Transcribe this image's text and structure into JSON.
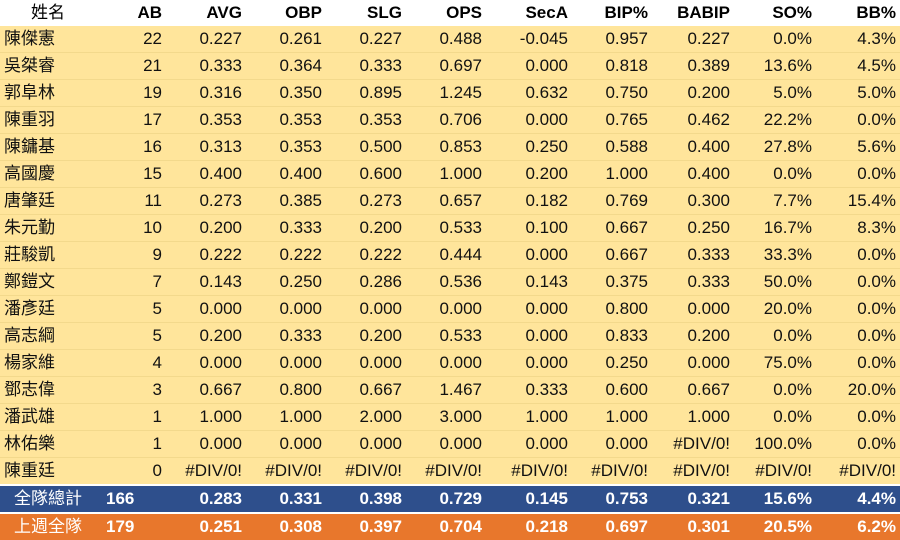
{
  "columns": [
    "姓名",
    "AB",
    "AVG",
    "OBP",
    "SLG",
    "OPS",
    "SecA",
    "BIP%",
    "BABIP",
    "SO%",
    "BB%"
  ],
  "players": [
    [
      "陳傑憲",
      "22",
      "0.227",
      "0.261",
      "0.227",
      "0.488",
      "-0.045",
      "0.957",
      "0.227",
      "0.0%",
      "4.3%"
    ],
    [
      "吳桀睿",
      "21",
      "0.333",
      "0.364",
      "0.333",
      "0.697",
      "0.000",
      "0.818",
      "0.389",
      "13.6%",
      "4.5%"
    ],
    [
      "郭阜林",
      "19",
      "0.316",
      "0.350",
      "0.895",
      "1.245",
      "0.632",
      "0.750",
      "0.200",
      "5.0%",
      "5.0%"
    ],
    [
      "陳重羽",
      "17",
      "0.353",
      "0.353",
      "0.353",
      "0.706",
      "0.000",
      "0.765",
      "0.462",
      "22.2%",
      "0.0%"
    ],
    [
      "陳鏞基",
      "16",
      "0.313",
      "0.353",
      "0.500",
      "0.853",
      "0.250",
      "0.588",
      "0.400",
      "27.8%",
      "5.6%"
    ],
    [
      "高國慶",
      "15",
      "0.400",
      "0.400",
      "0.600",
      "1.000",
      "0.200",
      "1.000",
      "0.400",
      "0.0%",
      "0.0%"
    ],
    [
      "唐肇廷",
      "11",
      "0.273",
      "0.385",
      "0.273",
      "0.657",
      "0.182",
      "0.769",
      "0.300",
      "7.7%",
      "15.4%"
    ],
    [
      "朱元勤",
      "10",
      "0.200",
      "0.333",
      "0.200",
      "0.533",
      "0.100",
      "0.667",
      "0.250",
      "16.7%",
      "8.3%"
    ],
    [
      "莊駿凱",
      "9",
      "0.222",
      "0.222",
      "0.222",
      "0.444",
      "0.000",
      "0.667",
      "0.333",
      "33.3%",
      "0.0%"
    ],
    [
      "鄭鎧文",
      "7",
      "0.143",
      "0.250",
      "0.286",
      "0.536",
      "0.143",
      "0.375",
      "0.333",
      "50.0%",
      "0.0%"
    ],
    [
      "潘彥廷",
      "5",
      "0.000",
      "0.000",
      "0.000",
      "0.000",
      "0.000",
      "0.800",
      "0.000",
      "20.0%",
      "0.0%"
    ],
    [
      "高志綱",
      "5",
      "0.200",
      "0.333",
      "0.200",
      "0.533",
      "0.000",
      "0.833",
      "0.200",
      "0.0%",
      "0.0%"
    ],
    [
      "楊家維",
      "4",
      "0.000",
      "0.000",
      "0.000",
      "0.000",
      "0.000",
      "0.250",
      "0.000",
      "75.0%",
      "0.0%"
    ],
    [
      "鄧志偉",
      "3",
      "0.667",
      "0.800",
      "0.667",
      "1.467",
      "0.333",
      "0.600",
      "0.667",
      "0.0%",
      "20.0%"
    ],
    [
      "潘武雄",
      "1",
      "1.000",
      "1.000",
      "2.000",
      "3.000",
      "1.000",
      "1.000",
      "1.000",
      "0.0%",
      "0.0%"
    ],
    [
      "林佑樂",
      "1",
      "0.000",
      "0.000",
      "0.000",
      "0.000",
      "0.000",
      "0.000",
      "#DIV/0!",
      "100.0%",
      "0.0%"
    ],
    [
      "陳重廷",
      "0",
      "#DIV/0!",
      "#DIV/0!",
      "#DIV/0!",
      "#DIV/0!",
      "#DIV/0!",
      "#DIV/0!",
      "#DIV/0!",
      "#DIV/0!",
      "#DIV/0!"
    ]
  ],
  "team_total": [
    "全隊總計",
    "166",
    "0.283",
    "0.331",
    "0.398",
    "0.729",
    "0.145",
    "0.753",
    "0.321",
    "15.6%",
    "4.4%"
  ],
  "last_week_team": [
    "上週全隊",
    "179",
    "0.251",
    "0.308",
    "0.397",
    "0.704",
    "0.218",
    "0.697",
    "0.301",
    "20.5%",
    "6.2%"
  ],
  "colors": {
    "player_row_bg": "#ffe59b",
    "team_total_bg": "#2e4f8c",
    "last_week_bg": "#e8772c",
    "summary_text": "#ffffff"
  }
}
